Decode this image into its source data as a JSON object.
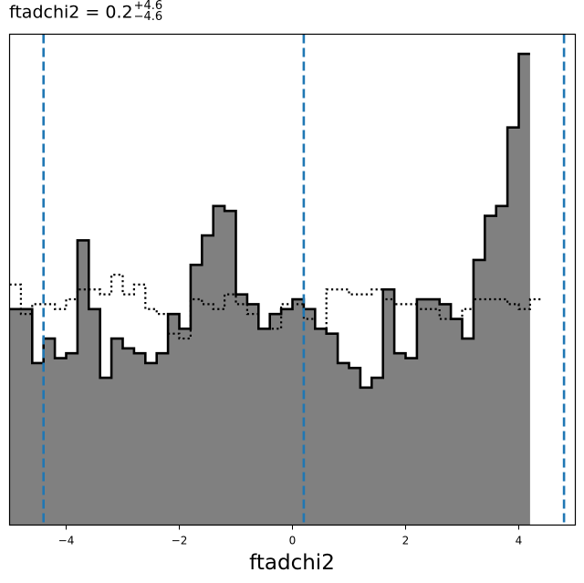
{
  "title": {
    "text": "ftadchi2 = 0.2",
    "sup": "+4.6",
    "sub": "−4.6"
  },
  "chart_data": {
    "type": "histogram",
    "xlabel": "ftadchi2",
    "ylabel": "",
    "xlim": [
      -5,
      5
    ],
    "ylim": [
      0,
      1.0
    ],
    "grid": false,
    "x_ticks": [
      -4,
      -2,
      0,
      2,
      4
    ],
    "x_tick_labels": [
      "−4",
      "−2",
      "0",
      "2",
      "4"
    ],
    "bin_width": 0.2,
    "series": [
      {
        "style": "filled-gray-black-outline",
        "bin_edges_start": -5,
        "values": [
          0.44,
          0.44,
          0.33,
          0.38,
          0.34,
          0.35,
          0.58,
          0.44,
          0.3,
          0.38,
          0.36,
          0.35,
          0.33,
          0.35,
          0.43,
          0.4,
          0.53,
          0.59,
          0.65,
          0.64,
          0.47,
          0.45,
          0.4,
          0.43,
          0.44,
          0.46,
          0.44,
          0.4,
          0.39,
          0.33,
          0.32,
          0.28,
          0.3,
          0.48,
          0.35,
          0.34,
          0.46,
          0.46,
          0.45,
          0.42,
          0.38,
          0.54,
          0.63,
          0.65,
          0.81,
          0.96
        ]
      },
      {
        "style": "dotted-outline",
        "bin_edges_start": -5,
        "values": [
          0.49,
          0.43,
          0.45,
          0.45,
          0.44,
          0.46,
          0.48,
          0.48,
          0.47,
          0.51,
          0.47,
          0.49,
          0.44,
          0.43,
          0.39,
          0.38,
          0.46,
          0.45,
          0.44,
          0.47,
          0.45,
          0.43,
          0.4,
          0.4,
          0.45,
          0.45,
          0.42,
          0.4,
          0.48,
          0.48,
          0.47,
          0.47,
          0.48,
          0.46,
          0.45,
          0.45,
          0.44,
          0.44,
          0.42,
          0.42,
          0.44,
          0.46,
          0.46,
          0.46,
          0.45,
          0.44,
          0.46
        ]
      }
    ],
    "vertical_lines": [
      {
        "x": -4.4,
        "style": "dashed",
        "color": "#1f77b4"
      },
      {
        "x": 0.2,
        "style": "dashed",
        "color": "#1f77b4"
      },
      {
        "x": 4.8,
        "style": "dashed",
        "color": "#1f77b4"
      }
    ]
  }
}
